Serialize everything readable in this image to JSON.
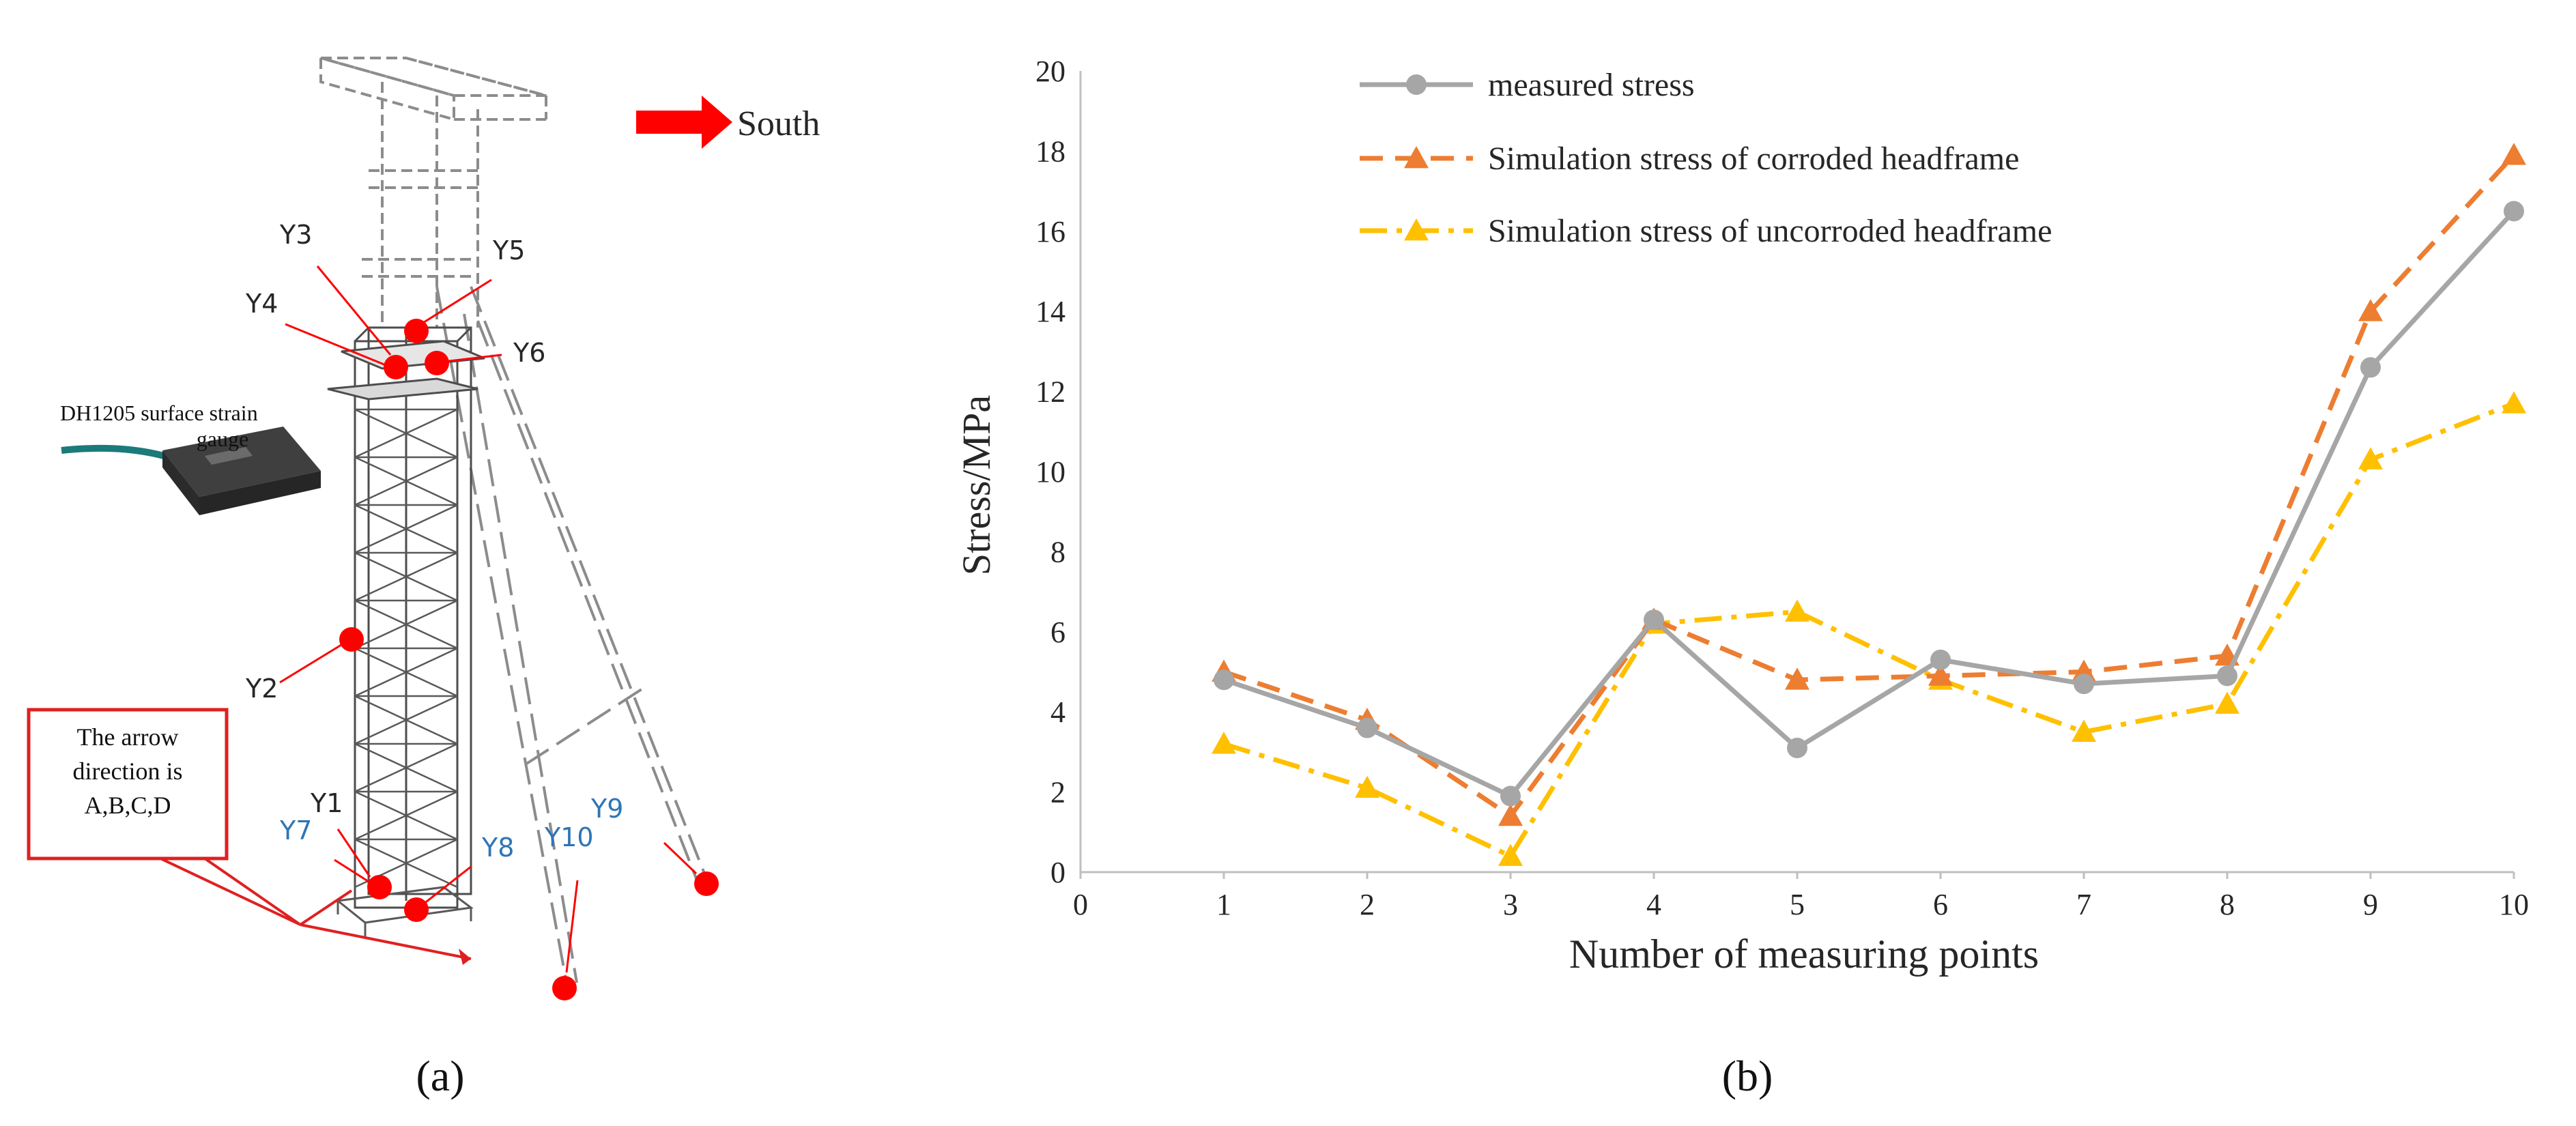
{
  "panel_a": {
    "direction_label": "South",
    "gauge_label_line1": "DH1205 surface strain",
    "gauge_label_line2": "gauge",
    "callout_line1": "The arrow",
    "callout_line2": "direction is",
    "callout_line3": "A,B,C,D",
    "points": {
      "y1": "Y1",
      "y2": "Y2",
      "y3": "Y3",
      "y4": "Y4",
      "y5": "Y5",
      "y6": "Y6",
      "y7": "Y7",
      "y8": "Y8",
      "y9": "Y9",
      "y10": "Y10"
    },
    "caption": "(a)"
  },
  "panel_b": {
    "caption": "(b)"
  },
  "colors": {
    "measured": "#a6a6a6",
    "corroded": "#ed7d31",
    "uncorroded": "#ffc000",
    "marker": "#ff0000",
    "blue_label": "#2e75b6"
  },
  "chart_data": {
    "type": "line",
    "title": "",
    "xlabel": "Number of measuring points",
    "ylabel": "Stress/MPa",
    "x": [
      1,
      2,
      3,
      4,
      5,
      6,
      7,
      8,
      9,
      10
    ],
    "xlim": [
      0,
      10
    ],
    "ylim": [
      0,
      20
    ],
    "xticks": [
      "0",
      "1",
      "2",
      "3",
      "4",
      "5",
      "6",
      "7",
      "8",
      "9",
      "10"
    ],
    "yticks": [
      "0",
      "2",
      "4",
      "6",
      "8",
      "10",
      "12",
      "14",
      "16",
      "18",
      "20"
    ],
    "legend_position": "top-center",
    "grid": false,
    "series": [
      {
        "name": "measured stress",
        "values": [
          4.8,
          3.6,
          1.9,
          6.3,
          3.1,
          5.3,
          4.7,
          4.9,
          12.6,
          16.5
        ]
      },
      {
        "name": "Simulation stress of corroded headframe",
        "values": [
          5.0,
          3.8,
          1.4,
          6.3,
          4.8,
          4.9,
          5.0,
          5.4,
          14.0,
          17.9
        ]
      },
      {
        "name": "Simulation stress of uncorroded headframe",
        "values": [
          3.2,
          2.1,
          0.4,
          6.2,
          6.5,
          4.8,
          3.5,
          4.2,
          10.3,
          11.7
        ]
      }
    ]
  }
}
